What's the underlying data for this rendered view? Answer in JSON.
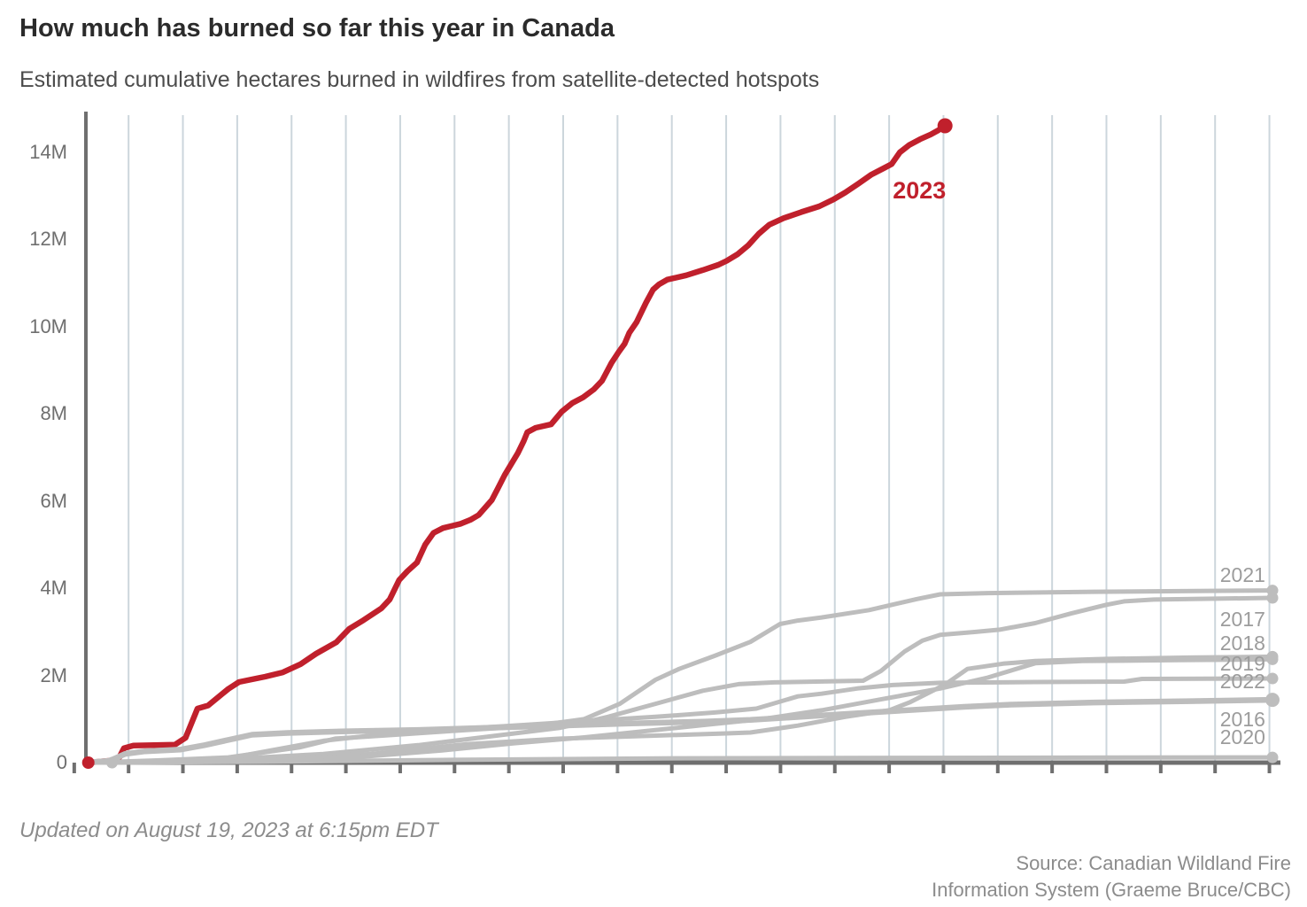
{
  "header": {
    "title": "How much has burned so far this year in Canada",
    "subtitle": "Estimated cumulative hectares burned in wildfires from satellite-detected hotspots"
  },
  "footer": {
    "updated": "Updated on August 19, 2023 at 6:15pm EDT",
    "source_line1": "Source: Canadian Wildland Fire",
    "source_line2": "Information System (Graeme Bruce/CBC)"
  },
  "colors": {
    "highlight": "#c0202c",
    "muted_line": "#bdbdbd",
    "grid": "#ccd6dc",
    "axis": "#6f6f6f",
    "axis_label": "#6f6f6f",
    "year_label": "#9c9c9c",
    "title": "#2b2b2b",
    "subtitle": "#4c4c4c",
    "footer": "#8c8c8c"
  },
  "chart_data": {
    "type": "line",
    "title": "How much has burned so far this year in Canada",
    "subtitle": "Estimated cumulative hectares burned in wildfires from satellite-detected hotspots",
    "unit": "hectares burned, millions (M)",
    "y_axis": {
      "ticks": [
        {
          "label": "0",
          "value": 0
        },
        {
          "label": "2M",
          "value": 2
        },
        {
          "label": "4M",
          "value": 4
        },
        {
          "label": "6M",
          "value": 6
        },
        {
          "label": "8M",
          "value": 8
        },
        {
          "label": "10M",
          "value": 10
        },
        {
          "label": "12M",
          "value": 12
        },
        {
          "label": "14M",
          "value": 14
        }
      ],
      "range_m": [
        0,
        14.65
      ]
    },
    "x_axis": {
      "visible_tick_labels": [],
      "gridlines": "22 evenly spaced vertical gridlines spanning the year, no labels shown"
    },
    "annotations": [
      {
        "text": "2023",
        "x_frac": 0.68,
        "value_m": 13.1,
        "style": "highlight"
      }
    ],
    "year_labels": [
      {
        "text": "2021",
        "value_m": 4.29
      },
      {
        "text": "2017",
        "value_m": 3.27
      },
      {
        "text": "2018",
        "value_m": 2.72
      },
      {
        "text": "2019",
        "value_m": 2.26
      },
      {
        "text": "2022",
        "value_m": 1.85
      },
      {
        "text": "2016",
        "value_m": 0.98
      },
      {
        "text": "2020",
        "value_m": 0.57
      }
    ],
    "series": [
      {
        "year": "2023",
        "style": "highlight",
        "end_value_m": 14.61,
        "start_dot": true,
        "end_dot": true,
        "points": [
          [
            0.002,
            0
          ],
          [
            0.027,
            0.06
          ],
          [
            0.032,
            0.33
          ],
          [
            0.04,
            0.39
          ],
          [
            0.075,
            0.41
          ],
          [
            0.084,
            0.57
          ],
          [
            0.094,
            1.24
          ],
          [
            0.103,
            1.31
          ],
          [
            0.12,
            1.69
          ],
          [
            0.129,
            1.85
          ],
          [
            0.151,
            1.97
          ],
          [
            0.166,
            2.07
          ],
          [
            0.181,
            2.26
          ],
          [
            0.194,
            2.5
          ],
          [
            0.211,
            2.76
          ],
          [
            0.222,
            3.07
          ],
          [
            0.234,
            3.27
          ],
          [
            0.249,
            3.54
          ],
          [
            0.256,
            3.74
          ],
          [
            0.264,
            4.19
          ],
          [
            0.271,
            4.39
          ],
          [
            0.279,
            4.59
          ],
          [
            0.286,
            5.0
          ],
          [
            0.293,
            5.27
          ],
          [
            0.301,
            5.38
          ],
          [
            0.316,
            5.48
          ],
          [
            0.324,
            5.57
          ],
          [
            0.331,
            5.68
          ],
          [
            0.342,
            6.02
          ],
          [
            0.347,
            6.28
          ],
          [
            0.353,
            6.6
          ],
          [
            0.364,
            7.1
          ],
          [
            0.369,
            7.38
          ],
          [
            0.372,
            7.58
          ],
          [
            0.379,
            7.68
          ],
          [
            0.392,
            7.76
          ],
          [
            0.401,
            8.05
          ],
          [
            0.41,
            8.25
          ],
          [
            0.419,
            8.38
          ],
          [
            0.428,
            8.56
          ],
          [
            0.435,
            8.76
          ],
          [
            0.443,
            9.17
          ],
          [
            0.449,
            9.42
          ],
          [
            0.454,
            9.61
          ],
          [
            0.458,
            9.86
          ],
          [
            0.464,
            10.1
          ],
          [
            0.472,
            10.55
          ],
          [
            0.478,
            10.85
          ],
          [
            0.483,
            10.97
          ],
          [
            0.49,
            11.08
          ],
          [
            0.506,
            11.18
          ],
          [
            0.52,
            11.3
          ],
          [
            0.533,
            11.42
          ],
          [
            0.54,
            11.51
          ],
          [
            0.549,
            11.66
          ],
          [
            0.558,
            11.86
          ],
          [
            0.567,
            12.13
          ],
          [
            0.576,
            12.34
          ],
          [
            0.588,
            12.49
          ],
          [
            0.603,
            12.63
          ],
          [
            0.618,
            12.76
          ],
          [
            0.63,
            12.92
          ],
          [
            0.64,
            13.08
          ],
          [
            0.651,
            13.28
          ],
          [
            0.662,
            13.49
          ],
          [
            0.672,
            13.63
          ],
          [
            0.679,
            13.73
          ],
          [
            0.686,
            14.0
          ],
          [
            0.694,
            14.17
          ],
          [
            0.703,
            14.3
          ],
          [
            0.712,
            14.41
          ],
          [
            0.718,
            14.5
          ],
          [
            0.724,
            14.61
          ]
        ]
      },
      {
        "year": "2021",
        "style": "muted",
        "end_value_m": 3.95,
        "start_dot": false,
        "end_dot": true,
        "points": [
          [
            0,
            0
          ],
          [
            0.06,
            0.05
          ],
          [
            0.12,
            0.12
          ],
          [
            0.18,
            0.35
          ],
          [
            0.21,
            0.55
          ],
          [
            0.25,
            0.62
          ],
          [
            0.31,
            0.73
          ],
          [
            0.38,
            0.85
          ],
          [
            0.42,
            1.0
          ],
          [
            0.45,
            1.35
          ],
          [
            0.48,
            1.9
          ],
          [
            0.5,
            2.15
          ],
          [
            0.53,
            2.45
          ],
          [
            0.56,
            2.77
          ],
          [
            0.585,
            3.18
          ],
          [
            0.6,
            3.26
          ],
          [
            0.62,
            3.33
          ],
          [
            0.66,
            3.5
          ],
          [
            0.7,
            3.75
          ],
          [
            0.72,
            3.86
          ],
          [
            0.76,
            3.89
          ],
          [
            0.85,
            3.92
          ],
          [
            1,
            3.95
          ]
        ]
      },
      {
        "year": "2017",
        "style": "muted",
        "end_value_m": 3.78,
        "start_dot": false,
        "end_dot": true,
        "points": [
          [
            0,
            0
          ],
          [
            0.05,
            0.02
          ],
          [
            0.12,
            0.08
          ],
          [
            0.2,
            0.2
          ],
          [
            0.28,
            0.4
          ],
          [
            0.34,
            0.6
          ],
          [
            0.4,
            0.8
          ],
          [
            0.44,
            1.05
          ],
          [
            0.48,
            1.35
          ],
          [
            0.52,
            1.65
          ],
          [
            0.55,
            1.8
          ],
          [
            0.58,
            1.84
          ],
          [
            0.655,
            1.88
          ],
          [
            0.67,
            2.1
          ],
          [
            0.69,
            2.55
          ],
          [
            0.705,
            2.8
          ],
          [
            0.72,
            2.93
          ],
          [
            0.75,
            3.0
          ],
          [
            0.77,
            3.05
          ],
          [
            0.8,
            3.2
          ],
          [
            0.83,
            3.42
          ],
          [
            0.86,
            3.62
          ],
          [
            0.875,
            3.7
          ],
          [
            0.9,
            3.74
          ],
          [
            1,
            3.78
          ]
        ]
      },
      {
        "year": "2018",
        "style": "muted",
        "end_value_m": 2.43,
        "start_dot": false,
        "end_dot": true,
        "points": [
          [
            0,
            0
          ],
          [
            0.08,
            0.02
          ],
          [
            0.16,
            0.08
          ],
          [
            0.24,
            0.2
          ],
          [
            0.32,
            0.42
          ],
          [
            0.4,
            0.55
          ],
          [
            0.48,
            0.62
          ],
          [
            0.54,
            0.67
          ],
          [
            0.56,
            0.69
          ],
          [
            0.6,
            0.85
          ],
          [
            0.64,
            1.05
          ],
          [
            0.677,
            1.2
          ],
          [
            0.694,
            1.38
          ],
          [
            0.724,
            1.79
          ],
          [
            0.743,
            2.15
          ],
          [
            0.773,
            2.27
          ],
          [
            0.8,
            2.33
          ],
          [
            0.86,
            2.38
          ],
          [
            0.93,
            2.41
          ],
          [
            1,
            2.43
          ]
        ]
      },
      {
        "year": "2019",
        "style": "muted",
        "end_value_m": 2.37,
        "start_dot": false,
        "end_dot": true,
        "points": [
          [
            0,
            0
          ],
          [
            0.08,
            0.01
          ],
          [
            0.16,
            0.05
          ],
          [
            0.24,
            0.15
          ],
          [
            0.3,
            0.28
          ],
          [
            0.36,
            0.44
          ],
          [
            0.42,
            0.58
          ],
          [
            0.47,
            0.72
          ],
          [
            0.52,
            0.86
          ],
          [
            0.57,
            1.0
          ],
          [
            0.62,
            1.2
          ],
          [
            0.67,
            1.45
          ],
          [
            0.72,
            1.7
          ],
          [
            0.76,
            1.95
          ],
          [
            0.8,
            2.28
          ],
          [
            0.84,
            2.33
          ],
          [
            0.92,
            2.35
          ],
          [
            1,
            2.37
          ]
        ]
      },
      {
        "year": "2022",
        "style": "muted",
        "end_value_m": 1.93,
        "start_dot": false,
        "end_dot": true,
        "points": [
          [
            0,
            0
          ],
          [
            0.06,
            0.02
          ],
          [
            0.12,
            0.1
          ],
          [
            0.16,
            0.3
          ],
          [
            0.2,
            0.5
          ],
          [
            0.25,
            0.65
          ],
          [
            0.3,
            0.75
          ],
          [
            0.36,
            0.85
          ],
          [
            0.42,
            0.95
          ],
          [
            0.48,
            1.05
          ],
          [
            0.53,
            1.15
          ],
          [
            0.565,
            1.24
          ],
          [
            0.6,
            1.52
          ],
          [
            0.62,
            1.58
          ],
          [
            0.65,
            1.7
          ],
          [
            0.68,
            1.78
          ],
          [
            0.72,
            1.83
          ],
          [
            0.8,
            1.85
          ],
          [
            0.875,
            1.86
          ],
          [
            0.89,
            1.92
          ],
          [
            1,
            1.93
          ]
        ]
      },
      {
        "year": "2016",
        "style": "muted-thick",
        "end_value_m": 1.44,
        "start_dot": false,
        "end_dot": true,
        "points": [
          [
            0,
            0
          ],
          [
            0.02,
            0.04
          ],
          [
            0.033,
            0.2
          ],
          [
            0.05,
            0.26
          ],
          [
            0.08,
            0.3
          ],
          [
            0.1,
            0.4
          ],
          [
            0.125,
            0.55
          ],
          [
            0.14,
            0.64
          ],
          [
            0.17,
            0.68
          ],
          [
            0.22,
            0.72
          ],
          [
            0.28,
            0.75
          ],
          [
            0.34,
            0.8
          ],
          [
            0.4,
            0.85
          ],
          [
            0.46,
            0.9
          ],
          [
            0.52,
            0.94
          ],
          [
            0.56,
            0.98
          ],
          [
            0.62,
            1.08
          ],
          [
            0.68,
            1.18
          ],
          [
            0.74,
            1.28
          ],
          [
            0.78,
            1.33
          ],
          [
            0.85,
            1.38
          ],
          [
            0.93,
            1.41
          ],
          [
            1,
            1.44
          ]
        ]
      },
      {
        "year": "2020",
        "style": "muted",
        "end_value_m": 0.12,
        "start_dot": true,
        "end_dot": true,
        "points": [
          [
            0.022,
            0
          ],
          [
            0.15,
            0.02
          ],
          [
            0.3,
            0.06
          ],
          [
            0.5,
            0.1
          ],
          [
            0.7,
            0.11
          ],
          [
            1,
            0.12
          ]
        ]
      }
    ]
  }
}
